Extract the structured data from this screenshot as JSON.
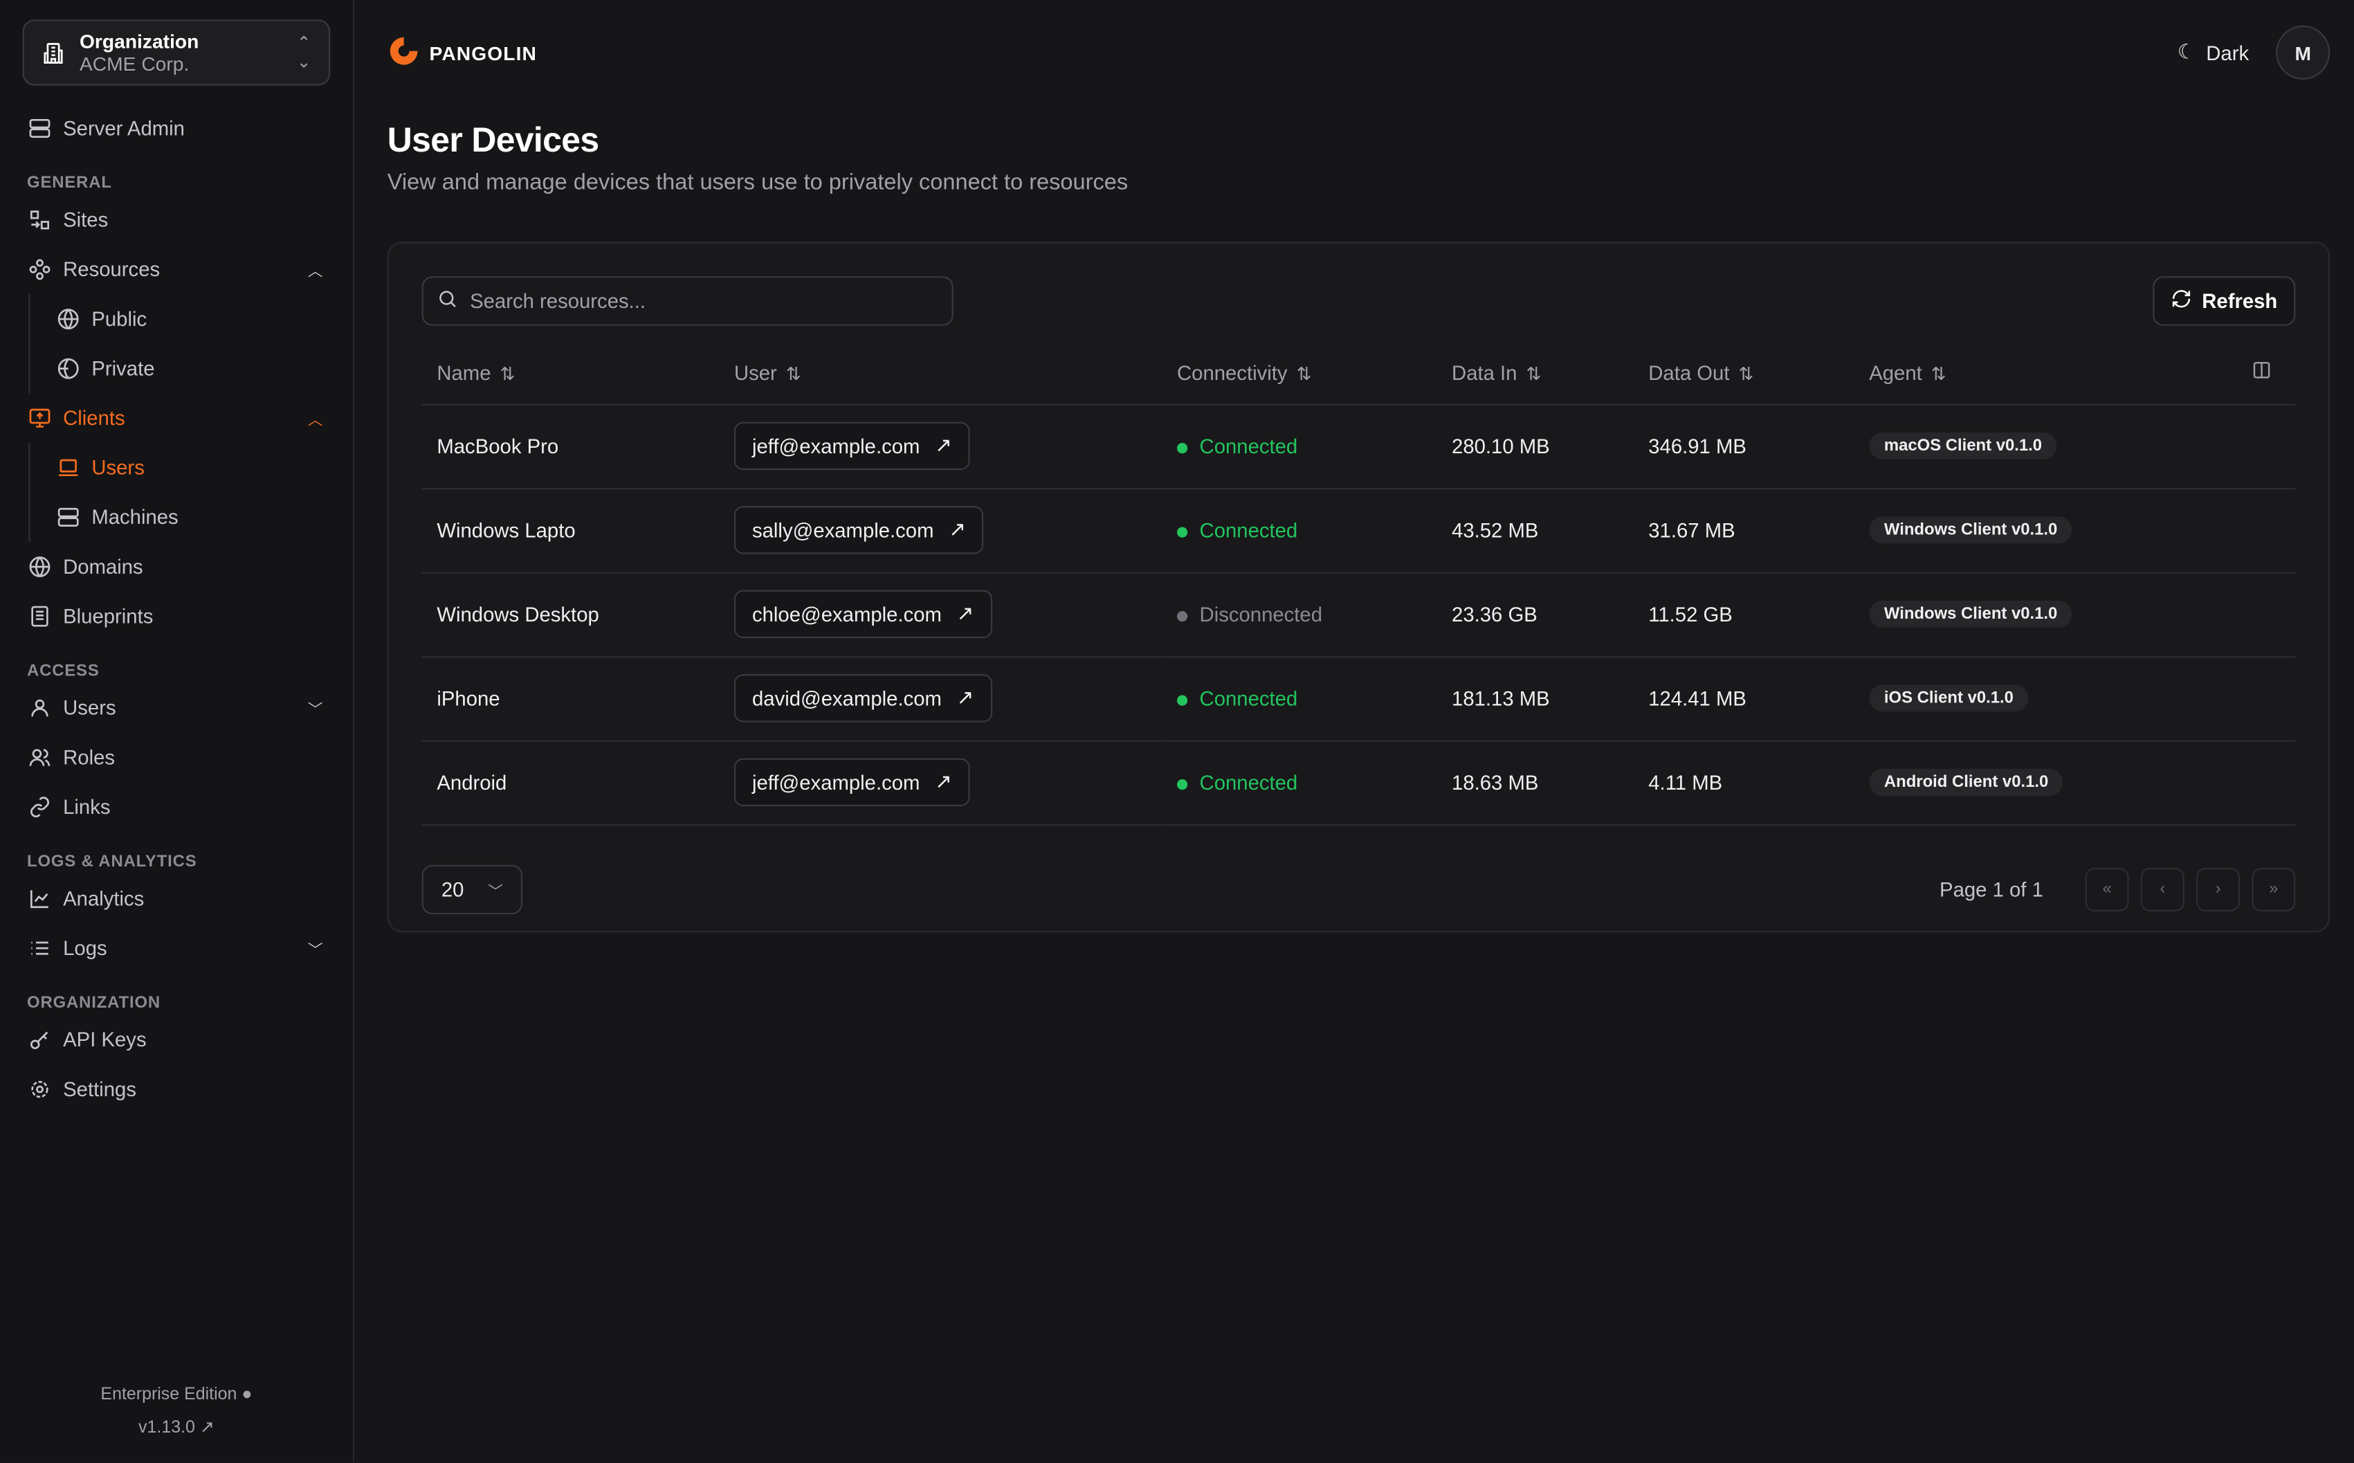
{
  "org": {
    "label": "Organization",
    "name": "ACME Corp."
  },
  "sidebar": {
    "server_admin": "Server Admin",
    "sections": {
      "general": "GENERAL",
      "access": "ACCESS",
      "logs": "LOGS & ANALYTICS",
      "organization": "ORGANIZATION"
    },
    "items": {
      "sites": "Sites",
      "resources": "Resources",
      "public": "Public",
      "private": "Private",
      "clients": "Clients",
      "users": "Users",
      "machines": "Machines",
      "domains": "Domains",
      "blueprints": "Blueprints",
      "access_users": "Users",
      "roles": "Roles",
      "links": "Links",
      "analytics": "Analytics",
      "logs": "Logs",
      "api_keys": "API Keys",
      "settings": "Settings"
    },
    "footer": {
      "edition": "Enterprise Edition",
      "version": "v1.13.0"
    }
  },
  "header": {
    "brand": "PANGOLIN",
    "theme": "Dark",
    "avatar": "M"
  },
  "page": {
    "title": "User Devices",
    "description": "View and manage devices that users use to privately connect to resources"
  },
  "toolbar": {
    "search_placeholder": "Search resources...",
    "refresh": "Refresh"
  },
  "table": {
    "columns": [
      "Name",
      "User",
      "Connectivity",
      "Data In",
      "Data Out",
      "Agent"
    ],
    "rows": [
      {
        "name": "MacBook Pro",
        "user": "jeff@example.com",
        "status": "Connected",
        "in": "280.10 MB",
        "out": "346.91 MB",
        "agent": "macOS Client v0.1.0"
      },
      {
        "name": "Windows Lapto",
        "user": "sally@example.com",
        "status": "Connected",
        "in": "43.52 MB",
        "out": "31.67 MB",
        "agent": "Windows Client v0.1.0"
      },
      {
        "name": "Windows Desktop",
        "user": "chloe@example.com",
        "status": "Disconnected",
        "in": "23.36 GB",
        "out": "11.52 GB",
        "agent": "Windows Client v0.1.0"
      },
      {
        "name": "iPhone",
        "user": "david@example.com",
        "status": "Connected",
        "in": "181.13 MB",
        "out": "124.41 MB",
        "agent": "iOS Client v0.1.0"
      },
      {
        "name": "Android",
        "user": "jeff@example.com",
        "status": "Connected",
        "in": "18.63 MB",
        "out": "4.11 MB",
        "agent": "Android Client v0.1.0"
      }
    ]
  },
  "pagination": {
    "page_size": "20",
    "page_label": "Page 1 of 1"
  },
  "colors": {
    "accent": "#f36d1f",
    "connected": "#22c55e",
    "disconnected": "#71717a"
  }
}
